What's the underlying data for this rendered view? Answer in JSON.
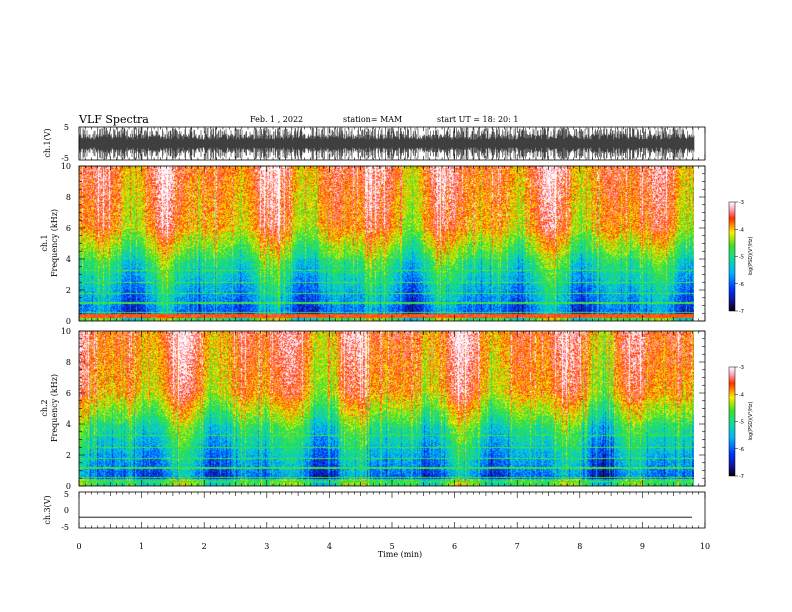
{
  "header": {
    "title": "VLF Spectra",
    "date": "Feb. 1  , 2022",
    "station": "station= MAM",
    "start": "start  UT  =    18: 20: 1"
  },
  "chart_data": [
    {
      "type": "line",
      "panel": "ch1-waveform",
      "ylabel": "ch.1(V)",
      "ylim": [
        -5,
        5
      ],
      "yticks": [
        "5",
        "-5"
      ],
      "xlim": [
        0,
        10
      ],
      "data_end_min": 9.83
    },
    {
      "type": "heatmap",
      "panel": "ch1-spectrogram",
      "ylabel": "ch.1\nFrequency  (kHz)",
      "ylim": [
        0,
        10
      ],
      "yticks": [
        "0",
        "2",
        "4",
        "6",
        "8",
        "10"
      ],
      "xlim": [
        0,
        10
      ],
      "data_end_min": 9.83,
      "colorbar": {
        "label": "log(PSD)(V²/Hz)",
        "range": [
          -7,
          -3
        ],
        "ticks": [
          "-3",
          "-4",
          "-5",
          "-6",
          "-7"
        ]
      }
    },
    {
      "type": "heatmap",
      "panel": "ch2-spectrogram",
      "ylabel": "ch.2\nFrequency  (kHz)",
      "ylim": [
        0,
        10
      ],
      "yticks": [
        "0",
        "2",
        "4",
        "6",
        "8",
        "10"
      ],
      "xlim": [
        0,
        10
      ],
      "data_end_min": 9.83,
      "colorbar": {
        "label": "log(PSD)(V²/Hz)",
        "range": [
          -7,
          -3
        ],
        "ticks": [
          "-3",
          "-4",
          "-5",
          "-6",
          "-7"
        ]
      }
    },
    {
      "type": "line",
      "panel": "ch3-waveform",
      "ylabel": "ch.3(V)",
      "ylim": [
        -5,
        5
      ],
      "yticks": [
        "5",
        "0",
        "-5"
      ],
      "xlim": [
        0,
        10
      ],
      "level": -2
    }
  ],
  "xaxis": {
    "label": "Time  (min)",
    "ticks": [
      "0",
      "1",
      "2",
      "3",
      "4",
      "5",
      "6",
      "7",
      "8",
      "9",
      "10"
    ]
  }
}
